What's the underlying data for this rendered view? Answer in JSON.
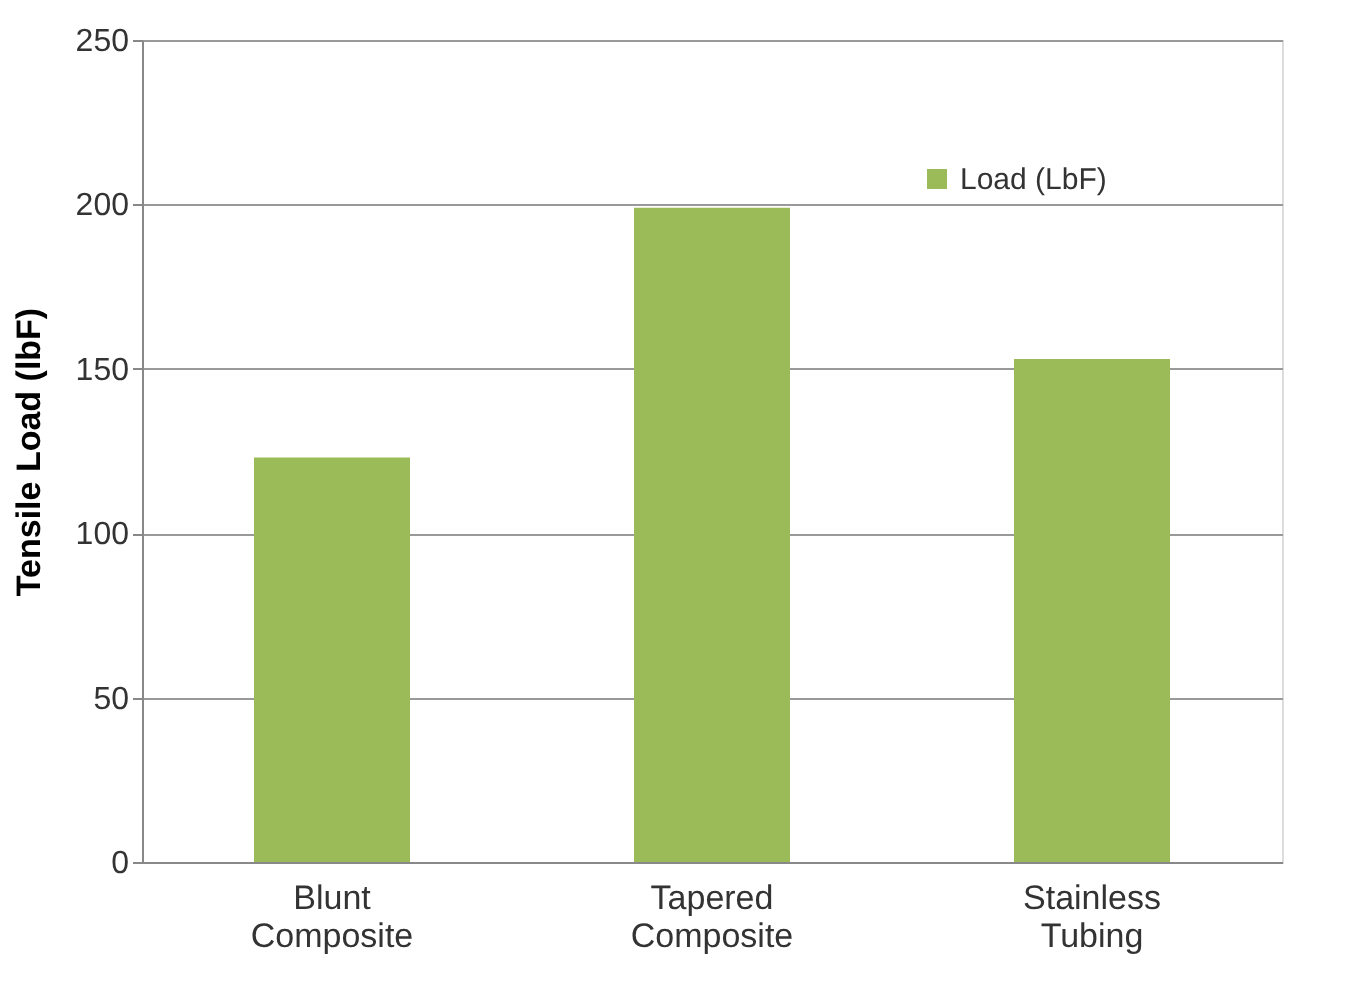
{
  "chart_data": {
    "type": "bar",
    "ylabel": "Tensile Load (lbF)",
    "categories": [
      "Blunt Composite",
      "Tapered Composite",
      "Stainless Tubing"
    ],
    "series": [
      {
        "name": "Load (LbF)",
        "color": "#9bbb59",
        "values": [
          123,
          199,
          153
        ]
      }
    ],
    "ylim": [
      0,
      250
    ],
    "yticks": [
      0,
      50,
      100,
      150,
      200,
      250
    ],
    "grid": "y",
    "legend": "top right"
  }
}
